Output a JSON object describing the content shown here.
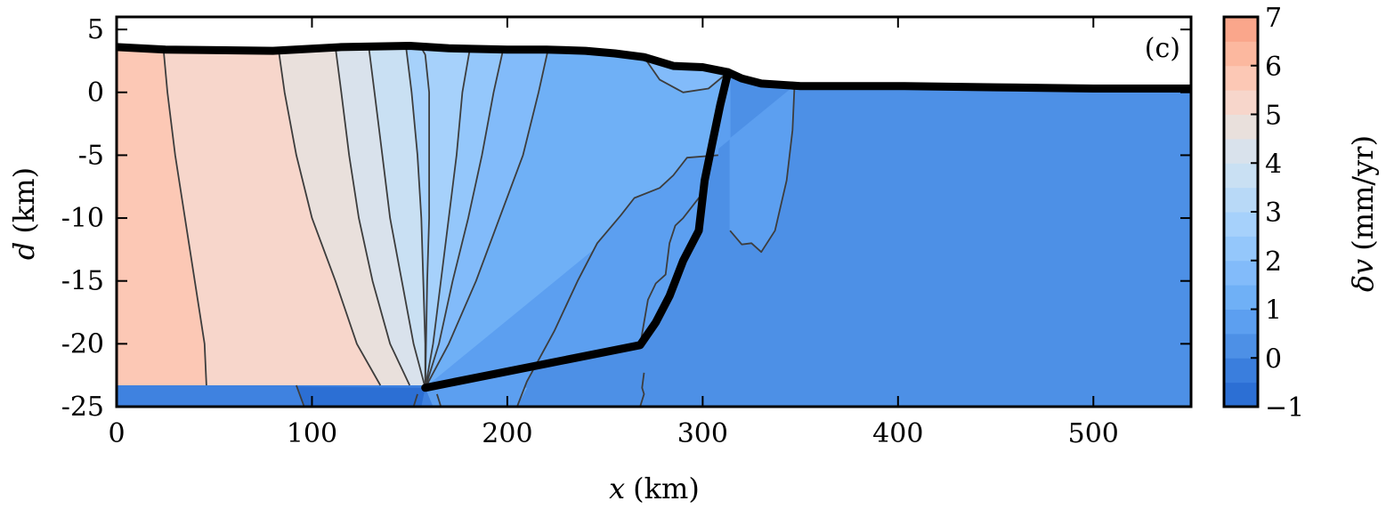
{
  "chart_data": {
    "type": "heatmap",
    "subtype": "filled-contour cross-section",
    "panel_label": "(c)",
    "xlabel": {
      "symbol": "x",
      "unit": "(km)"
    },
    "ylabel": {
      "symbol": "d",
      "unit": "(km)"
    },
    "colorbar_label": {
      "symbol": "δv",
      "unit": "(mm/yr)"
    },
    "xlim": [
      0,
      550
    ],
    "ylim": [
      -25,
      6
    ],
    "xticks": [
      0,
      100,
      200,
      300,
      400,
      500
    ],
    "yticks": [
      5,
      0,
      -5,
      -10,
      -15,
      -20,
      -25
    ],
    "ytick_labels": [
      "5",
      "0",
      "-5",
      "-10",
      "-15",
      "-20",
      "-25"
    ],
    "colorbar_range": [
      -1,
      7
    ],
    "colorbar_ticks": [
      -1,
      0,
      1,
      2,
      3,
      4,
      5,
      6,
      7
    ],
    "colorbar_tick_labels": [
      "−1",
      "0",
      "1",
      "2",
      "3",
      "4",
      "5",
      "6",
      "7"
    ],
    "level_step": 0.5,
    "level_colors": [
      "#2c6fd4",
      "#3a7edd",
      "#4d90e6",
      "#5c9ff0",
      "#6fb0f6",
      "#82bbfa",
      "#94c7fb",
      "#a6d1fb",
      "#b8d9f7",
      "#c9e0f3",
      "#d9e2ec",
      "#e9e0dc",
      "#f7d6cb",
      "#fcc8b5",
      "#fcb89f",
      "#faa68b",
      "#f89476",
      "#f78165",
      "#f4614f",
      "#ef3c40",
      "#e8202f"
    ],
    "zones": [
      {
        "vmin": 5.5,
        "vmax": 6.0,
        "surface": [
          [
            0,
            3.7
          ],
          [
            25,
            3.4
          ]
        ],
        "bottom": [
          [
            45,
            -23.3
          ]
        ]
      },
      {
        "vmin": 5.0,
        "vmax": 5.5,
        "surface": [
          [
            25,
            3.4
          ],
          [
            82,
            3.3
          ]
        ],
        "bottom": [
          [
            45,
            -23.3
          ],
          [
            135,
            -23.3
          ]
        ]
      },
      {
        "vmin": 4.5,
        "vmax": 5.0,
        "surface": [
          [
            82,
            3.3
          ],
          [
            112,
            3.6
          ]
        ],
        "bottom": [
          [
            135,
            -23.3
          ],
          [
            150,
            -23.3
          ]
        ]
      },
      {
        "vmin": 4.0,
        "vmax": 4.5,
        "surface": [
          [
            112,
            3.6
          ],
          [
            130,
            3.7
          ]
        ],
        "bottom": [
          [
            150,
            -23.3
          ],
          [
            158,
            -23.5
          ]
        ]
      },
      {
        "vmin": 3.5,
        "vmax": 4.0,
        "surface": [
          [
            130,
            3.7
          ],
          [
            150,
            3.8
          ]
        ],
        "bottom": [
          [
            158,
            -23.5
          ]
        ]
      },
      {
        "vmin": 2.5,
        "vmax": 3.0,
        "surface": [
          [
            150,
            3.8
          ],
          [
            180,
            3.6
          ]
        ],
        "bottom": [
          [
            158,
            -23.5
          ]
        ]
      },
      {
        "vmin": 2.0,
        "vmax": 2.5,
        "surface": [
          [
            180,
            3.6
          ],
          [
            197,
            3.5
          ]
        ],
        "bottom": [
          [
            158,
            -23.5
          ]
        ]
      },
      {
        "vmin": 1.5,
        "vmax": 2.0,
        "surface": [
          [
            197,
            3.5
          ],
          [
            220,
            3.5
          ]
        ],
        "bottom": [
          [
            158,
            -23.5
          ],
          [
            210,
            -23.5
          ]
        ]
      },
      {
        "vmin": 1.0,
        "vmax": 1.5,
        "surface": [
          [
            220,
            3.5
          ],
          [
            300,
            1.7
          ]
        ],
        "bottom": [
          [
            210,
            -23.5
          ],
          [
            268,
            -20.1
          ]
        ]
      },
      {
        "vmin": 0.5,
        "vmax": 1.0,
        "surface": [
          [
            300,
            1.7
          ],
          [
            347,
            0.5
          ]
        ],
        "bottom": [
          [
            268,
            -20.1
          ],
          [
            310,
            -15
          ]
        ]
      },
      {
        "vmin": 0.0,
        "vmax": 0.5,
        "surface": [
          [
            347,
            0.5
          ],
          [
            550,
            0.3
          ]
        ],
        "bottom": [
          [
            310,
            -15
          ],
          [
            550,
            -25
          ]
        ]
      },
      {
        "vmin": -1.0,
        "vmax": -0.5,
        "surface": [],
        "bottom": [
          [
            0,
            -23.3
          ],
          [
            158,
            -23.5
          ],
          [
            160,
            -25
          ]
        ]
      }
    ],
    "topography": [
      [
        0,
        3.6
      ],
      [
        25,
        3.4
      ],
      [
        80,
        3.3
      ],
      [
        115,
        3.6
      ],
      [
        150,
        3.7
      ],
      [
        170,
        3.5
      ],
      [
        200,
        3.4
      ],
      [
        220,
        3.4
      ],
      [
        240,
        3.3
      ],
      [
        255,
        3.1
      ],
      [
        270,
        2.8
      ],
      [
        285,
        2.1
      ],
      [
        300,
        2.0
      ],
      [
        313,
        1.6
      ],
      [
        320,
        1.1
      ],
      [
        330,
        0.7
      ],
      [
        350,
        0.5
      ],
      [
        400,
        0.5
      ],
      [
        450,
        0.4
      ],
      [
        500,
        0.3
      ],
      [
        550,
        0.3
      ]
    ],
    "fault": [
      [
        158,
        -23.5
      ],
      [
        268,
        -20.1
      ],
      [
        276,
        -18.3
      ],
      [
        283,
        -16.2
      ],
      [
        290,
        -13.4
      ],
      [
        298,
        -11
      ],
      [
        301,
        -7
      ],
      [
        305,
        -4
      ],
      [
        309,
        -1
      ],
      [
        313,
        1.6
      ]
    ],
    "contours": [
      [
        [
          24,
          3.4
        ],
        [
          26,
          0
        ],
        [
          30,
          -5
        ],
        [
          35,
          -10
        ],
        [
          40,
          -15
        ],
        [
          45,
          -20
        ],
        [
          46,
          -23.3
        ]
      ],
      [
        [
          83,
          3.3
        ],
        [
          86,
          0
        ],
        [
          92,
          -5
        ],
        [
          100,
          -10
        ],
        [
          112,
          -15
        ],
        [
          123,
          -20
        ],
        [
          135,
          -23.3
        ]
      ],
      [
        [
          112,
          3.6
        ],
        [
          115,
          0
        ],
        [
          119,
          -5
        ],
        [
          124,
          -10
        ],
        [
          131,
          -15
        ],
        [
          140,
          -20
        ],
        [
          150,
          -23.3
        ]
      ],
      [
        [
          129,
          3.7
        ],
        [
          132,
          0
        ],
        [
          136,
          -5
        ],
        [
          140,
          -10
        ],
        [
          146,
          -15
        ],
        [
          152,
          -20
        ],
        [
          158,
          -23.5
        ]
      ],
      [
        [
          148,
          3.8
        ],
        [
          151,
          0
        ],
        [
          154,
          -5
        ],
        [
          156,
          -10
        ],
        [
          157,
          -15
        ],
        [
          158,
          -20
        ],
        [
          158,
          -23.5
        ]
      ],
      [
        [
          155,
          3.8
        ],
        [
          158,
          3
        ],
        [
          160,
          0
        ],
        [
          160,
          -5
        ],
        [
          160,
          -10
        ],
        [
          159,
          -15
        ],
        [
          158,
          -23.5
        ]
      ],
      [
        [
          181,
          3.6
        ],
        [
          177,
          0
        ],
        [
          174,
          -5
        ],
        [
          170,
          -10
        ],
        [
          166,
          -15
        ],
        [
          162,
          -20
        ],
        [
          158,
          -23.5
        ]
      ],
      [
        [
          198,
          3.5
        ],
        [
          193,
          0
        ],
        [
          187,
          -5
        ],
        [
          180,
          -10
        ],
        [
          172,
          -15
        ],
        [
          165,
          -20
        ],
        [
          158,
          -23.5
        ]
      ],
      [
        [
          221,
          3.5
        ],
        [
          216,
          0
        ],
        [
          208,
          -5
        ],
        [
          196,
          -10
        ],
        [
          184,
          -15
        ],
        [
          170,
          -20
        ],
        [
          158,
          -23.5
        ]
      ],
      [
        [
          270,
          2.8
        ],
        [
          278,
          1
        ],
        [
          290,
          0
        ],
        [
          303,
          0.3
        ],
        [
          313,
          1.6
        ]
      ],
      [
        [
          347,
          0.5
        ],
        [
          346,
          -3
        ],
        [
          343,
          -7
        ],
        [
          337,
          -11
        ],
        [
          330,
          -12.7
        ],
        [
          325,
          -12
        ],
        [
          320,
          -12.1
        ],
        [
          314,
          -11
        ]
      ],
      [
        [
          308,
          -5
        ],
        [
          292,
          -5.2
        ],
        [
          285,
          -6.6
        ],
        [
          278,
          -7.6
        ],
        [
          265,
          -8.4
        ],
        [
          258,
          -9.8
        ],
        [
          246,
          -12
        ],
        [
          236,
          -15
        ],
        [
          224,
          -19
        ],
        [
          210,
          -23
        ],
        [
          205,
          -25
        ]
      ],
      [
        [
          300,
          -8
        ],
        [
          290,
          -10
        ],
        [
          286,
          -10.6
        ],
        [
          283,
          -12
        ],
        [
          281,
          -14.5
        ],
        [
          276,
          -15.2
        ],
        [
          272,
          -16.5
        ],
        [
          270,
          -18.3
        ],
        [
          268,
          -20.1
        ]
      ],
      [
        [
          270,
          -22.3
        ],
        [
          269,
          -23.5
        ],
        [
          270,
          -24
        ],
        [
          268,
          -25
        ]
      ],
      [
        [
          92,
          -23.3
        ],
        [
          96,
          -25
        ]
      ],
      [
        [
          154,
          -24
        ],
        [
          152,
          -25
        ]
      ],
      [
        [
          164,
          -24
        ],
        [
          166,
          -25
        ]
      ]
    ]
  }
}
